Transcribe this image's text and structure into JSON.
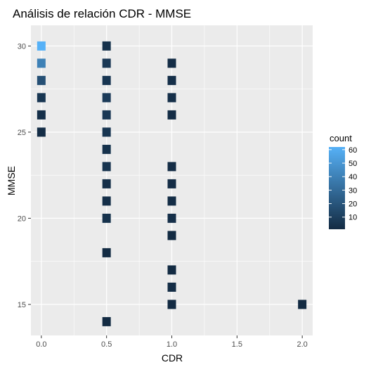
{
  "chart_data": {
    "type": "heatmap",
    "title": "Análisis de relación CDR - MMSE",
    "xlabel": "CDR",
    "ylabel": "MMSE",
    "xlim": [
      -0.08,
      2.08
    ],
    "ylim": [
      13.2,
      31.2
    ],
    "x_ticks": [
      0.0,
      0.5,
      1.0,
      1.5,
      2.0
    ],
    "x_tick_labels": [
      "0.0",
      "0.5",
      "1.0",
      "1.5",
      "2.0"
    ],
    "y_ticks": [
      15,
      20,
      25,
      30
    ],
    "y_tick_labels": [
      "15",
      "20",
      "25",
      "30"
    ],
    "grid": true,
    "legend": {
      "title": "count",
      "position": "right",
      "min": 1,
      "max": 62,
      "ticks": [
        10,
        20,
        30,
        40,
        50,
        60
      ],
      "tick_labels": [
        "10",
        "20",
        "30",
        "40",
        "50",
        "60"
      ],
      "low_color": "#132B43",
      "high_color": "#56B1F7"
    },
    "cells": [
      {
        "x": 0.0,
        "y": 30,
        "count": 62
      },
      {
        "x": 0.0,
        "y": 29,
        "count": 40
      },
      {
        "x": 0.0,
        "y": 28,
        "count": 18
      },
      {
        "x": 0.0,
        "y": 27,
        "count": 6
      },
      {
        "x": 0.0,
        "y": 26,
        "count": 3
      },
      {
        "x": 0.0,
        "y": 25,
        "count": 2
      },
      {
        "x": 0.5,
        "y": 30,
        "count": 4
      },
      {
        "x": 0.5,
        "y": 29,
        "count": 7
      },
      {
        "x": 0.5,
        "y": 28,
        "count": 6
      },
      {
        "x": 0.5,
        "y": 27,
        "count": 8
      },
      {
        "x": 0.5,
        "y": 26,
        "count": 7
      },
      {
        "x": 0.5,
        "y": 25,
        "count": 6
      },
      {
        "x": 0.5,
        "y": 24,
        "count": 4
      },
      {
        "x": 0.5,
        "y": 23,
        "count": 5
      },
      {
        "x": 0.5,
        "y": 22,
        "count": 3
      },
      {
        "x": 0.5,
        "y": 21,
        "count": 3
      },
      {
        "x": 0.5,
        "y": 20,
        "count": 4
      },
      {
        "x": 0.5,
        "y": 18,
        "count": 1
      },
      {
        "x": 0.5,
        "y": 14,
        "count": 1
      },
      {
        "x": 1.0,
        "y": 29,
        "count": 2
      },
      {
        "x": 1.0,
        "y": 28,
        "count": 3
      },
      {
        "x": 1.0,
        "y": 27,
        "count": 3
      },
      {
        "x": 1.0,
        "y": 26,
        "count": 2
      },
      {
        "x": 1.0,
        "y": 23,
        "count": 2
      },
      {
        "x": 1.0,
        "y": 22,
        "count": 2
      },
      {
        "x": 1.0,
        "y": 21,
        "count": 2
      },
      {
        "x": 1.0,
        "y": 20,
        "count": 3
      },
      {
        "x": 1.0,
        "y": 19,
        "count": 1
      },
      {
        "x": 1.0,
        "y": 17,
        "count": 1
      },
      {
        "x": 1.0,
        "y": 16,
        "count": 2
      },
      {
        "x": 1.0,
        "y": 15,
        "count": 1
      },
      {
        "x": 2.0,
        "y": 15,
        "count": 1
      }
    ]
  }
}
